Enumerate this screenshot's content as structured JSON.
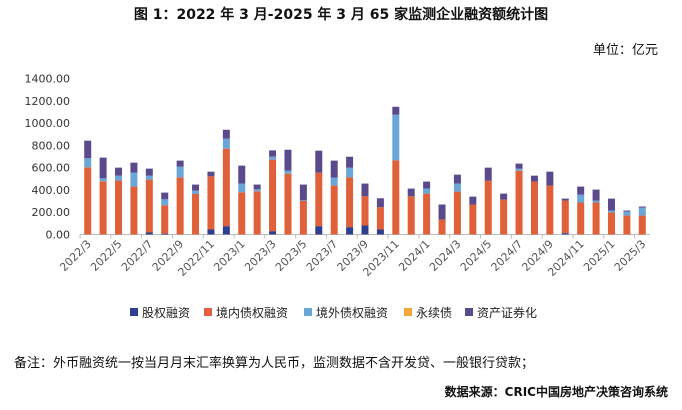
{
  "chart_data": {
    "type": "bar",
    "stacked": true,
    "title": "图 1：2022 年 3 月-2025 年 3 月 65 家监测企业融资额统计图",
    "unit": "单位：亿元",
    "ylim": [
      0,
      1400
    ],
    "yticks": [
      "0.00",
      "200.00",
      "400.00",
      "600.00",
      "800.00",
      "1000.00",
      "1200.00",
      "1400.00"
    ],
    "categories": [
      "2022/3",
      "2022/4",
      "2022/5",
      "2022/6",
      "2022/7",
      "2022/8",
      "2022/9",
      "2022/10",
      "2022/11",
      "2022/12",
      "2023/1",
      "2023/2",
      "2023/3",
      "2023/4",
      "2023/5",
      "2023/6",
      "2023/7",
      "2023/8",
      "2023/9",
      "2023/10",
      "2023/11",
      "2023/12",
      "2024/1",
      "2024/2",
      "2024/3",
      "2024/4",
      "2024/5",
      "2024/6",
      "2024/7",
      "2024/8",
      "2024/9",
      "2024/10",
      "2024/11",
      "2024/12",
      "2025/1",
      "2025/2",
      "2025/3"
    ],
    "series": [
      {
        "name": "股权融资",
        "color": "#2f3f8f",
        "values": [
          0,
          0,
          0,
          0,
          18,
          8,
          0,
          0,
          45,
          75,
          0,
          0,
          30,
          0,
          0,
          75,
          0,
          66,
          81,
          45,
          0,
          0,
          0,
          0,
          0,
          0,
          0,
          0,
          0,
          0,
          0,
          12,
          0,
          0,
          0,
          0,
          0
        ]
      },
      {
        "name": "境内债权融资",
        "color": "#e0603a",
        "values": [
          603,
          478,
          484,
          430,
          475,
          255,
          513,
          364,
          477,
          695,
          379,
          388,
          642,
          546,
          301,
          480,
          439,
          447,
          262,
          200,
          666,
          343,
          367,
          134,
          385,
          269,
          484,
          313,
          573,
          475,
          439,
          292,
          287,
          287,
          197,
          170,
          170
        ]
      },
      {
        "name": "境外债权融资",
        "color": "#6aa6d8",
        "values": [
          81,
          26,
          44,
          125,
          35,
          53,
          96,
          30,
          0,
          90,
          78,
          18,
          27,
          27,
          6,
          0,
          71,
          87,
          0,
          0,
          409,
          0,
          45,
          0,
          72,
          0,
          0,
          0,
          18,
          0,
          0,
          0,
          71,
          17,
          18,
          36,
          72
        ]
      },
      {
        "name": "永续债",
        "color": "#f4a63a",
        "values": [
          0,
          0,
          0,
          0,
          0,
          0,
          0,
          0,
          0,
          0,
          0,
          0,
          0,
          0,
          0,
          0,
          0,
          0,
          0,
          0,
          0,
          0,
          0,
          0,
          0,
          0,
          0,
          0,
          0,
          0,
          0,
          0,
          0,
          0,
          0,
          0,
          0
        ]
      },
      {
        "name": "资产证券化",
        "color": "#5b4a8b",
        "values": [
          158,
          186,
          72,
          90,
          63,
          60,
          54,
          54,
          42,
          80,
          161,
          42,
          56,
          188,
          141,
          197,
          153,
          98,
          114,
          80,
          71,
          69,
          63,
          135,
          80,
          71,
          116,
          54,
          45,
          53,
          125,
          18,
          72,
          99,
          107,
          9,
          9
        ]
      }
    ],
    "legend_position": "bottom"
  },
  "note": "备注：外币融资统一按当月月末汇率换算为人民币，监测数据不含开发贷、一般银行贷款；",
  "source": "数据来源：CRIC中国房地产决策咨询系统"
}
